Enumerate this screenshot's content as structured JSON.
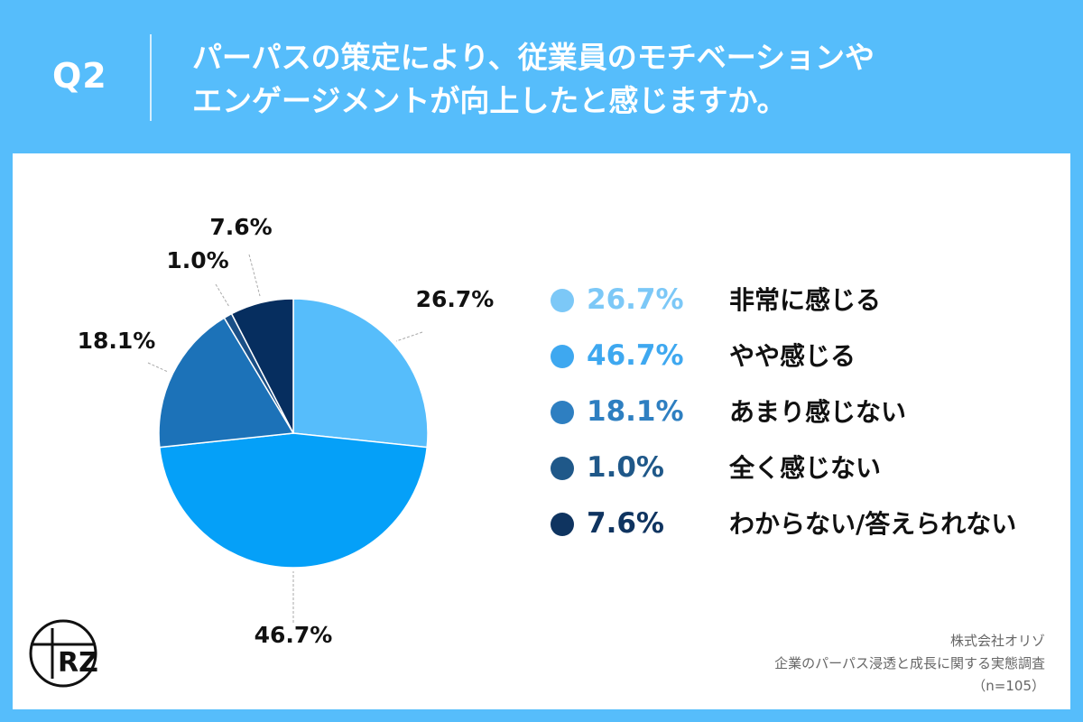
{
  "header": {
    "qnum": "Q2",
    "line1": "パーパスの策定により、従業員のモチベーションや",
    "line2": "エンゲージメントが向上したと感じますか。"
  },
  "chart_data": {
    "type": "pie",
    "categories": [
      "非常に感じる",
      "やや感じる",
      "あまり感じない",
      "全く感じない",
      "わからない/答えられない"
    ],
    "values": [
      26.7,
      46.7,
      18.1,
      1.0,
      7.6
    ],
    "value_labels": [
      "26.7%",
      "46.7%",
      "18.1%",
      "1.0%",
      "7.6%"
    ],
    "colors": [
      "#56bdfb",
      "#05a0f8",
      "#1c72b8",
      "#1a4f86",
      "#062e5f"
    ],
    "legend_colors": [
      "#7cc8f7",
      "#3ea8f0",
      "#2e7fc1",
      "#1f5889",
      "#0f3460"
    ],
    "start": "12 o'clock",
    "direction": "clockwise",
    "legend_position": "right"
  },
  "legend": [
    {
      "pct": "26.7%",
      "label": "非常に感じる"
    },
    {
      "pct": "46.7%",
      "label": "やや感じる"
    },
    {
      "pct": "18.1%",
      "label": "あまり感じない"
    },
    {
      "pct": "1.0%",
      "label": "全く感じない"
    },
    {
      "pct": "7.6%",
      "label": "わからない/答えられない"
    }
  ],
  "source": {
    "company": "株式会社オリゾ",
    "survey": "企業のパーパス浸透と成長に関する実態調査",
    "n": "（n=105）"
  },
  "logo": {
    "icon": "oriz-logo-icon"
  }
}
